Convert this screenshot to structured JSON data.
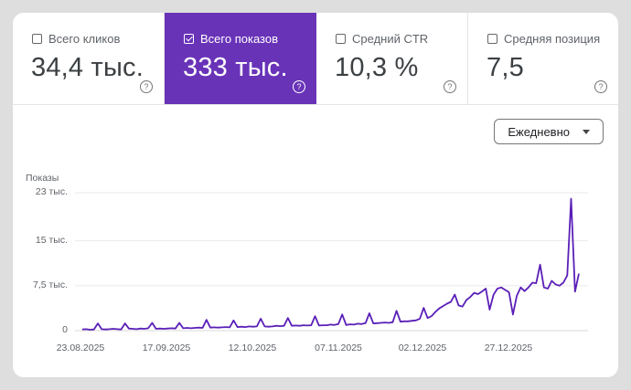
{
  "metrics": [
    {
      "label": "Всего кликов",
      "value": "34,4 тыс.",
      "selected": false
    },
    {
      "label": "Всего показов",
      "value": "333 тыс.",
      "selected": true
    },
    {
      "label": "Средний CTR",
      "value": "10,3 %",
      "selected": false
    },
    {
      "label": "Средняя позиция",
      "value": "7,5",
      "selected": false
    }
  ],
  "help_icon": "?",
  "granularity": {
    "selected": "Ежедневно"
  },
  "colors": {
    "accent": "#6933b8",
    "line": "#5a1fb8"
  },
  "chart_data": {
    "type": "line",
    "title": "",
    "ylabel": "Показы",
    "xlabel": "",
    "y_ticks": [
      "0",
      "7,5 тыс.",
      "15 тыс.",
      "23 тыс."
    ],
    "y_tick_values": [
      0,
      7500,
      15000,
      23000
    ],
    "ylim": [
      0,
      23000
    ],
    "x_ticks": [
      "23.08.2025",
      "17.09.2025",
      "12.10.2025",
      "07.11.2025",
      "02.12.2025",
      "27.12.2025"
    ],
    "grid": true,
    "legend": "none",
    "series": [
      {
        "name": "Показы",
        "x_start": "23.08.2025",
        "x_end": "16.01.2026",
        "values": [
          200,
          250,
          150,
          200,
          1200,
          250,
          200,
          250,
          300,
          250,
          200,
          1200,
          350,
          300,
          250,
          350,
          300,
          400,
          1300,
          300,
          350,
          300,
          350,
          400,
          350,
          1300,
          400,
          450,
          400,
          450,
          500,
          450,
          1800,
          500,
          550,
          500,
          550,
          600,
          550,
          1700,
          600,
          650,
          600,
          700,
          650,
          700,
          2000,
          700,
          650,
          700,
          800,
          750,
          800,
          2100,
          800,
          850,
          800,
          900,
          850,
          900,
          2400,
          850,
          900,
          900,
          1000,
          950,
          1100,
          2700,
          950,
          1050,
          1000,
          1150,
          1100,
          1250,
          2900,
          1200,
          1250,
          1300,
          1350,
          1300,
          1400,
          3300,
          1500,
          1550,
          1550,
          1650,
          1700,
          2000,
          3800,
          2100,
          2400,
          3100,
          3700,
          4100,
          4500,
          4800,
          6000,
          4200,
          4000,
          5100,
          5600,
          6300,
          6100,
          6500,
          7000,
          3500,
          6000,
          7000,
          7200,
          6800,
          6400,
          2700,
          5800,
          7200,
          6600,
          7200,
          8000,
          7900,
          11000,
          7200,
          7000,
          8300,
          7700,
          7500,
          8000,
          9200,
          22000,
          6500,
          9500
        ]
      }
    ]
  }
}
